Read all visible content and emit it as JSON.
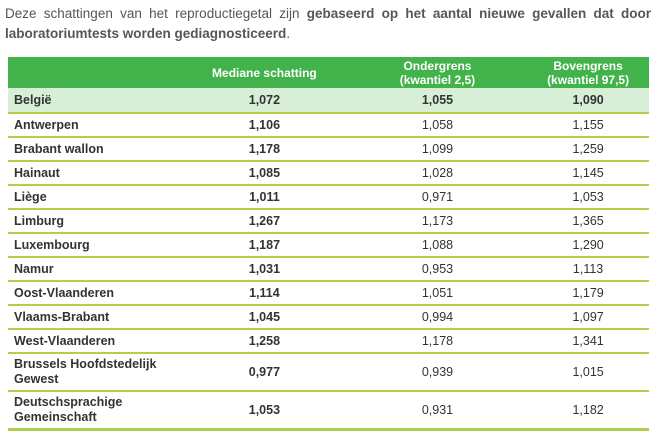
{
  "intro": {
    "regular": "Deze schattingen van het reproductiegetal zijn ",
    "bold": "gebaseerd op het aantal nieuwe gevallen dat door laboratoriumtests worden gediagnosticeerd",
    "period": "."
  },
  "colors": {
    "header_green": "#42B24A",
    "highlight_row": "#D7EED7",
    "separator": "#AFD04E",
    "body_text": "#333333",
    "intro_text": "#54565A",
    "header_text": "#FFFFFF"
  },
  "table": {
    "headers": [
      {
        "line1": "",
        "line2": ""
      },
      {
        "line1": "Mediane schatting",
        "line2": ""
      },
      {
        "line1": "Ondergrens",
        "line2": "(kwantiel 2,5)"
      },
      {
        "line1": "Bovengrens",
        "line2": "(kwantiel 97,5)"
      }
    ],
    "rows": [
      {
        "region": "België",
        "median": "1,072",
        "lower": "1,055",
        "upper": "1,090",
        "highlight": true
      },
      {
        "region": "Antwerpen",
        "median": "1,106",
        "lower": "1,058",
        "upper": "1,155",
        "highlight": false
      },
      {
        "region": "Brabant wallon",
        "median": "1,178",
        "lower": "1,099",
        "upper": "1,259",
        "highlight": false
      },
      {
        "region": "Hainaut",
        "median": "1,085",
        "lower": "1,028",
        "upper": "1,145",
        "highlight": false
      },
      {
        "region": "Liège",
        "median": "1,011",
        "lower": "0,971",
        "upper": "1,053",
        "highlight": false
      },
      {
        "region": "Limburg",
        "median": "1,267",
        "lower": "1,173",
        "upper": "1,365",
        "highlight": false
      },
      {
        "region": "Luxembourg",
        "median": "1,187",
        "lower": "1,088",
        "upper": "1,290",
        "highlight": false
      },
      {
        "region": "Namur",
        "median": "1,031",
        "lower": "0,953",
        "upper": "1,113",
        "highlight": false
      },
      {
        "region": "Oost-Vlaanderen",
        "median": "1,114",
        "lower": "1,051",
        "upper": "1,179",
        "highlight": false
      },
      {
        "region": "Vlaams-Brabant",
        "median": "1,045",
        "lower": "0,994",
        "upper": "1,097",
        "highlight": false
      },
      {
        "region": "West-Vlaanderen",
        "median": "1,258",
        "lower": "1,178",
        "upper": "1,341",
        "highlight": false
      },
      {
        "region": "Brussels Hoofdstedelijk Gewest",
        "median": "0,977",
        "lower": "0,939",
        "upper": "1,015",
        "highlight": false
      },
      {
        "region": "Deutschsprachige Gemeinschaft",
        "median": "1,053",
        "lower": "0,931",
        "upper": "1,182",
        "highlight": false
      }
    ]
  }
}
